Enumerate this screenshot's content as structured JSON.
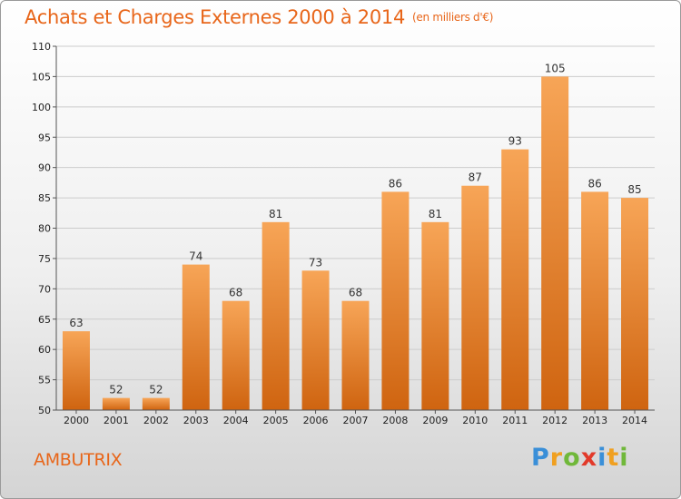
{
  "title": "Achats et Charges Externes 2000 à 2014",
  "subtitle": "(en milliers d'€)",
  "commune": "AMBUTRIX",
  "logo": {
    "letters": [
      "P",
      "r",
      "o",
      "x",
      "i",
      "t",
      "i"
    ],
    "colors": [
      "#3a8fd8",
      "#f0a020",
      "#70b83a",
      "#e23a2a",
      "#3a8fd8",
      "#f0a020",
      "#70b83a"
    ]
  },
  "colors": {
    "title": "#e8661a",
    "bar_top": "#f7a557",
    "bar_bottom": "#cf6410",
    "grid": "#cccccc",
    "axis_text": "#222222"
  },
  "chart_data": {
    "type": "bar",
    "categories": [
      "2000",
      "2001",
      "2002",
      "2003",
      "2004",
      "2005",
      "2006",
      "2007",
      "2008",
      "2009",
      "2010",
      "2011",
      "2012",
      "2013",
      "2014"
    ],
    "values": [
      63,
      52,
      52,
      74,
      68,
      81,
      73,
      68,
      86,
      81,
      87,
      93,
      105,
      86,
      85
    ],
    "ylim": [
      50,
      110
    ],
    "yticks": [
      50,
      55,
      60,
      65,
      70,
      75,
      80,
      85,
      90,
      95,
      100,
      105,
      110
    ],
    "grid": true,
    "title": "Achats et Charges Externes 2000 à 2014",
    "subtitle": "(en milliers d'€)"
  }
}
